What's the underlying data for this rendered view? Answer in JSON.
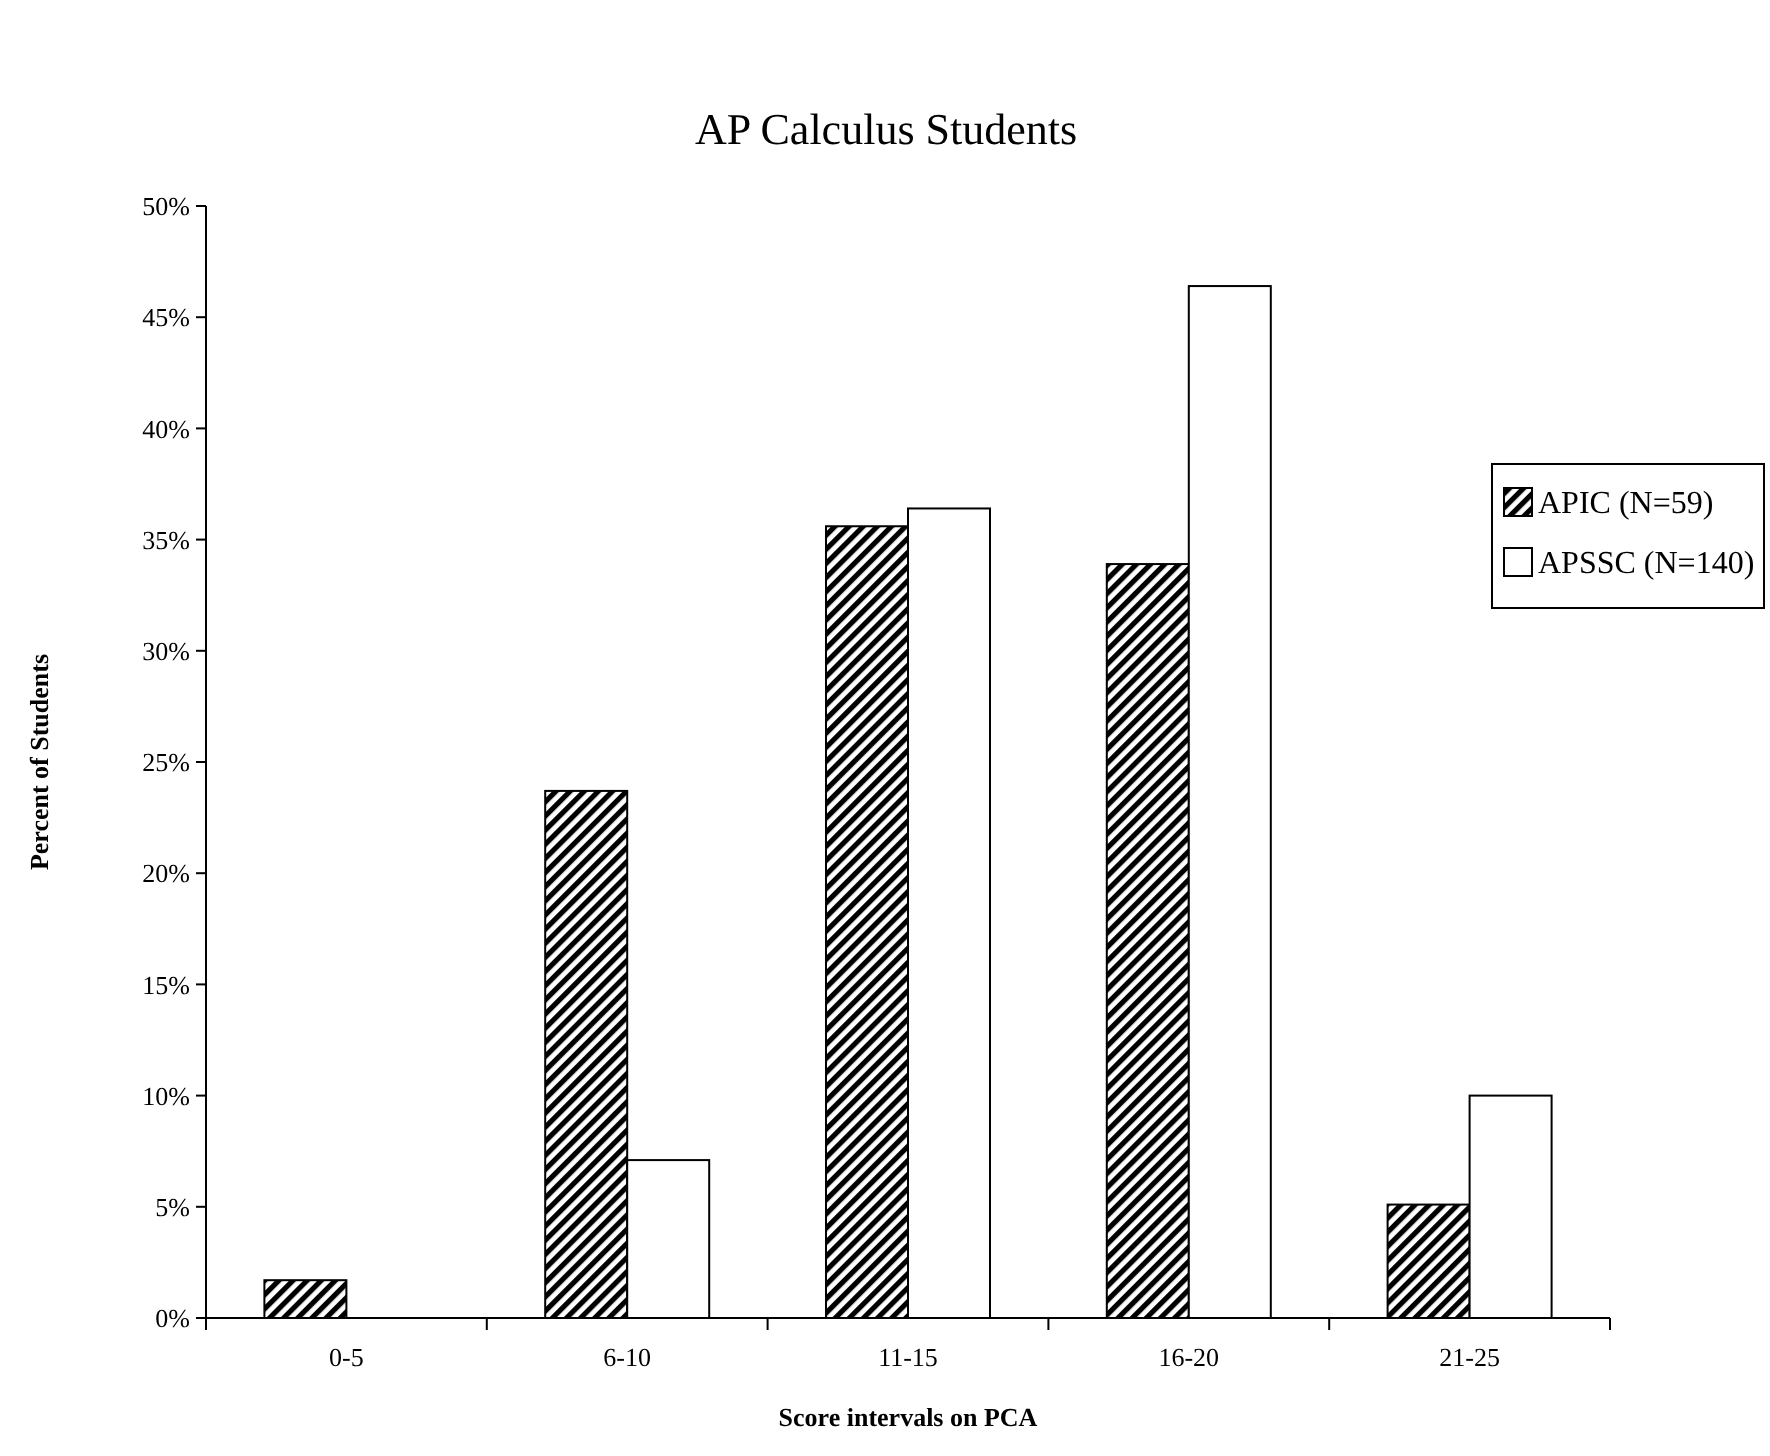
{
  "chart_data": {
    "type": "bar",
    "title": "AP Calculus Students",
    "xlabel": "Score intervals on PCA",
    "ylabel": "Percent of Students",
    "categories": [
      "0-5",
      "6-10",
      "11-15",
      "16-20",
      "21-25"
    ],
    "series": [
      {
        "name": "APIC (N=59)",
        "color": "#000000",
        "values": [
          1.7,
          23.7,
          35.6,
          33.9,
          5.1
        ]
      },
      {
        "name": "APSSC (N=140)",
        "color": "#ffffff",
        "values": [
          0,
          7.1,
          36.4,
          46.4,
          10.0
        ]
      }
    ],
    "ylim": [
      0,
      50
    ],
    "yticks": [
      {
        "value": 0,
        "label": "0%"
      },
      {
        "value": 5,
        "label": "5%"
      },
      {
        "value": 10,
        "label": "10%"
      },
      {
        "value": 15,
        "label": "15%"
      },
      {
        "value": 20,
        "label": "20%"
      },
      {
        "value": 25,
        "label": "25%"
      },
      {
        "value": 30,
        "label": "30%"
      },
      {
        "value": 35,
        "label": "35%"
      },
      {
        "value": 40,
        "label": "40%"
      },
      {
        "value": 45,
        "label": "45%"
      },
      {
        "value": 50,
        "label": "50%"
      }
    ],
    "grid": false,
    "legend": "right"
  }
}
